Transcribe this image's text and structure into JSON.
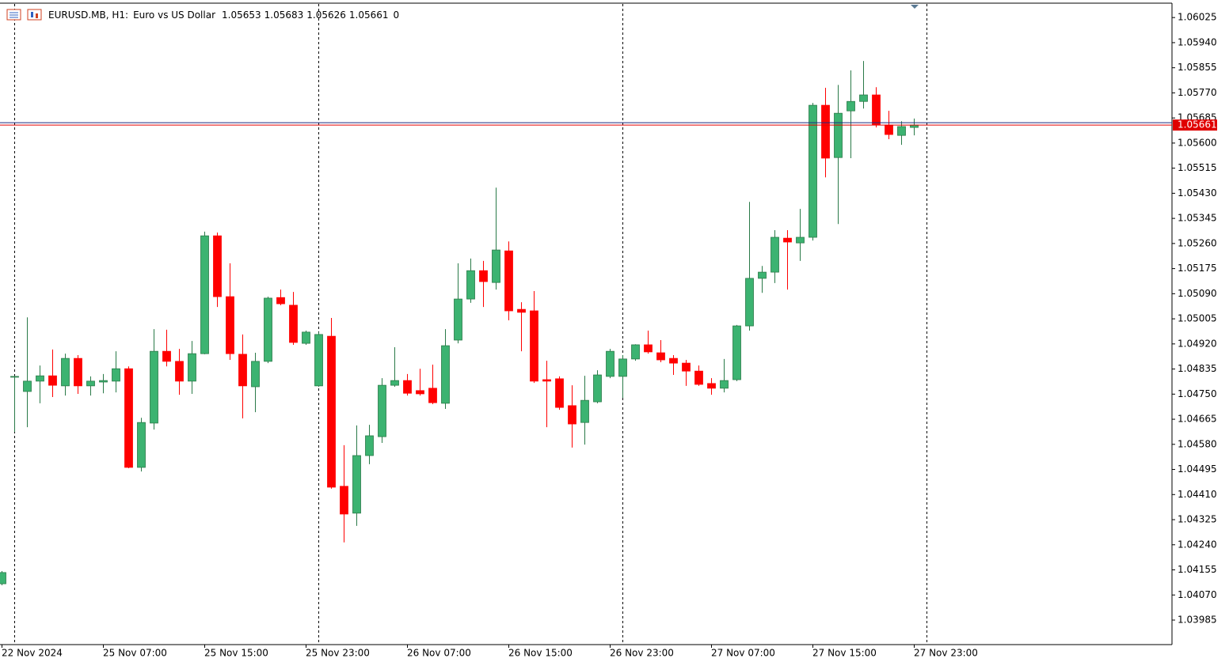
{
  "chart_data": {
    "type": "candlestick",
    "symbol": "EURUSD.MB, H1:",
    "description": "Euro vs US Dollar",
    "header_ohlc": [
      1.05653,
      1.05683,
      1.05626,
      1.05661
    ],
    "header_extra": 0,
    "bid": 1.05661,
    "up_color": "#3cb371",
    "down_color": "#ff0000",
    "bid_color": "#e00000",
    "ylim": [
      1.03902,
      1.06071
    ],
    "yticks": [
      1.06025,
      {
        "value": 1.0594,
        "label": "1.05940"
      },
      1.05855,
      {
        "value": 1.0577,
        "label": "1.05770"
      },
      1.05685,
      {
        "value": 1.056,
        "label": "1.05600"
      },
      1.05515,
      {
        "value": 1.0543,
        "label": "1.05430"
      },
      1.05345,
      {
        "value": 1.0526,
        "label": "1.05260"
      },
      1.05175,
      {
        "value": 1.0509,
        "label": "1.05090"
      },
      1.05005,
      {
        "value": 1.0492,
        "label": "1.04920"
      },
      1.04835,
      {
        "value": 1.0475,
        "label": "1.04750"
      },
      1.04665,
      {
        "value": 1.0458,
        "label": "1.04580"
      },
      1.04495,
      {
        "value": 1.0441,
        "label": "1.04410"
      },
      1.04325,
      {
        "value": 1.0424,
        "label": "1.04240"
      },
      1.04155,
      {
        "value": 1.0407,
        "label": "1.04070"
      },
      1.03985
    ],
    "xticks": [
      {
        "value": 0,
        "label": "22 Nov 2024"
      },
      {
        "value": 8,
        "label": "25 Nov 07:00"
      },
      {
        "value": 16,
        "label": "25 Nov 15:00"
      },
      {
        "value": 24,
        "label": "25 Nov 23:00"
      },
      {
        "value": 32,
        "label": "26 Nov 07:00"
      },
      {
        "value": 40,
        "label": "26 Nov 15:00"
      },
      {
        "value": 48,
        "label": "26 Nov 23:00"
      },
      {
        "value": 56,
        "label": "27 Nov 07:00"
      },
      {
        "value": 64,
        "label": "27 Nov 15:00"
      },
      {
        "value": 72,
        "label": "27 Nov 23:00"
      }
    ],
    "open": [
      1.04108,
      1.0481,
      1.04759,
      1.04794,
      1.04812,
      1.04778,
      1.04871,
      1.04778,
      1.04791,
      1.04794,
      1.04836,
      1.04502,
      1.04652,
      1.04895,
      1.04861,
      1.04794,
      1.04887,
      1.05286,
      1.0508,
      1.04885,
      1.04775,
      1.04861,
      1.05077,
      1.05051,
      1.04922,
      1.04778,
      1.04946,
      1.04438,
      1.04347,
      1.04542,
      1.04606,
      1.0478,
      1.04796,
      1.04762,
      1.0477,
      1.04719,
      1.04933,
      1.05072,
      1.05168,
      1.05128,
      1.05235,
      1.05037,
      1.05032,
      1.04799,
      1.04802,
      1.04711,
      1.04654,
      1.04724,
      1.0481,
      1.0481,
      1.04869,
      1.04917,
      1.0489,
      1.04871,
      1.04855,
      1.04828,
      1.04786,
      1.0477,
      1.04799,
      1.04981,
      1.05142,
      1.05163,
      1.05278,
      1.05262,
      1.05281,
      1.05728,
      1.05551,
      1.05709,
      1.05741,
      1.05763,
      1.05661,
      1.05626,
      1.05653
    ],
    "high": [
      1.04151,
      1.04812,
      1.0501,
      1.04847,
      1.04901,
      1.04887,
      1.04882,
      1.0481,
      1.04818,
      1.04895,
      1.04844,
      1.0467,
      1.0497,
      1.04968,
      1.04903,
      1.0493,
      1.053,
      1.05297,
      1.05193,
      1.04952,
      1.0489,
      1.0508,
      1.05104,
      1.05096,
      1.04965,
      1.0496,
      1.05008,
      1.04577,
      1.04644,
      1.04646,
      1.04804,
      1.04909,
      1.04818,
      1.04836,
      1.0485,
      1.0497,
      1.05193,
      1.05209,
      1.05201,
      1.05449,
      1.05267,
      1.05061,
      1.05099,
      1.04863,
      1.0481,
      1.0478,
      1.04812,
      1.04831,
      1.04903,
      1.04882,
      1.04919,
      1.04965,
      1.04933,
      1.04882,
      1.04866,
      1.04847,
      1.04804,
      1.04869,
      1.04984,
      1.05401,
      1.05184,
      1.05305,
      1.05305,
      1.05377,
      1.05736,
      1.05787,
      1.05797,
      1.05846,
      1.05878,
      1.05789,
      1.05709,
      1.05674,
      1.05683
    ],
    "low": [
      1.04103,
      1.04622,
      1.04638,
      1.04719,
      1.0474,
      1.04745,
      1.04751,
      1.04745,
      1.04753,
      1.04756,
      1.04499,
      1.04488,
      1.0463,
      1.04844,
      1.04748,
      1.04751,
      1.04885,
      1.05045,
      1.04866,
      1.04668,
      1.04689,
      1.04855,
      1.05051,
      1.04917,
      1.04917,
      1.04775,
      1.0443,
      1.04248,
      1.04304,
      1.04513,
      1.04585,
      1.04775,
      1.04745,
      1.04745,
      1.04716,
      1.047,
      1.04922,
      1.05059,
      1.05045,
      1.05104,
      1.05,
      1.04895,
      1.04788,
      1.04638,
      1.04697,
      1.04569,
      1.04579,
      1.04719,
      1.04804,
      1.04737,
      1.04863,
      1.04887,
      1.04858,
      1.04815,
      1.04778,
      1.04778,
      1.04748,
      1.04756,
      1.04794,
      1.04965,
      1.05093,
      1.05126,
      1.05104,
      1.05201,
      1.0527,
      1.05484,
      1.05326,
      1.05549,
      1.05717,
      1.05653,
      1.05613,
      1.05594,
      1.05626
    ],
    "close": [
      1.04146,
      1.0481,
      1.04794,
      1.04812,
      1.0478,
      1.04871,
      1.04778,
      1.04794,
      1.04796,
      1.04836,
      1.04502,
      1.04654,
      1.04895,
      1.04861,
      1.04794,
      1.04887,
      1.05286,
      1.0508,
      1.04887,
      1.04778,
      1.04861,
      1.05075,
      1.05056,
      1.04925,
      1.0496,
      1.04952,
      1.04435,
      1.04344,
      1.04542,
      1.04609,
      1.0478,
      1.04796,
      1.04753,
      1.04751,
      1.04721,
      1.04914,
      1.05072,
      1.05168,
      1.05131,
      1.05238,
      1.05032,
      1.05027,
      1.04794,
      1.04794,
      1.04705,
      1.04649,
      1.04729,
      1.04815,
      1.04895,
      1.04869,
      1.04917,
      1.04893,
      1.04866,
      1.04855,
      1.04828,
      1.04783,
      1.0477,
      1.04796,
      1.04981,
      1.05142,
      1.05163,
      1.05281,
      1.05265,
      1.05281,
      1.05728,
      1.05549,
      1.05701,
      1.05741,
      1.05763,
      1.05661,
      1.05629,
      1.05656,
      1.05661
    ]
  }
}
